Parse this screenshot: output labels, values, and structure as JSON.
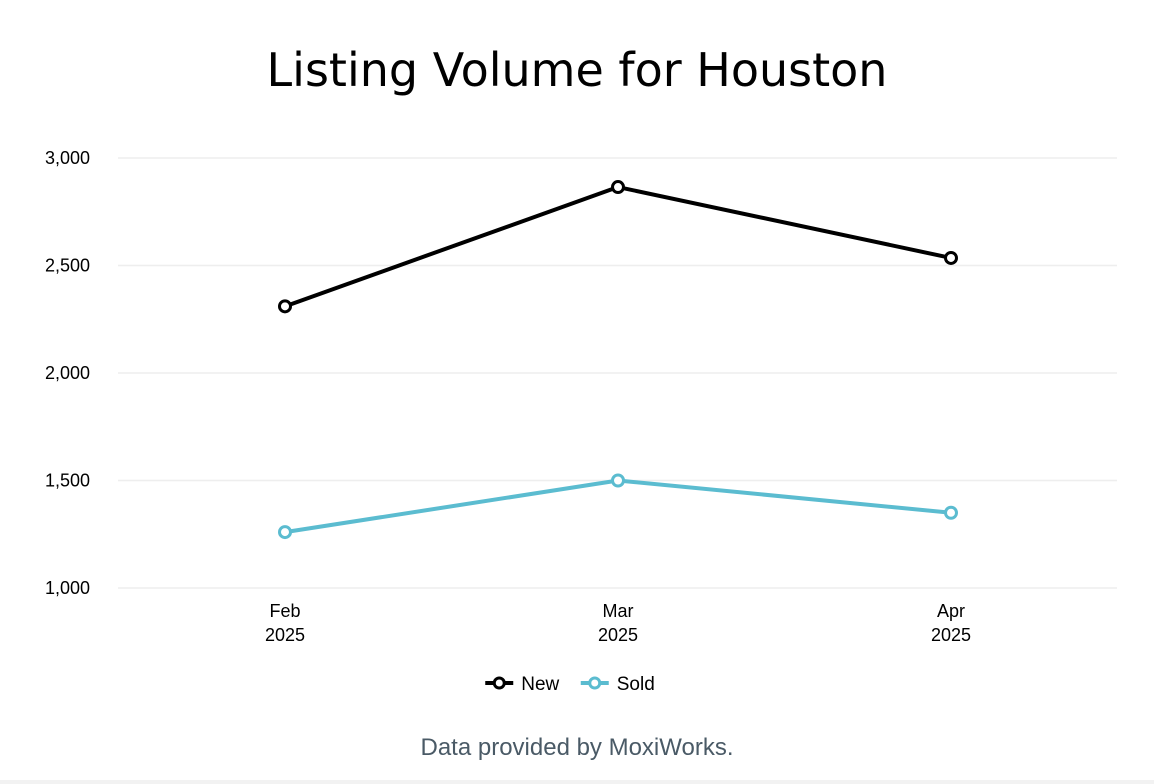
{
  "chart_data": {
    "type": "line",
    "title": "Listing Volume for Houston",
    "xlabel": "",
    "ylabel": "",
    "categories": [
      [
        "Feb",
        "2025"
      ],
      [
        "Mar",
        "2025"
      ],
      [
        "Apr",
        "2025"
      ]
    ],
    "series": [
      {
        "name": "New",
        "values": [
          2310,
          2865,
          2535
        ],
        "color": "#000000"
      },
      {
        "name": "Sold",
        "values": [
          1260,
          1500,
          1350
        ],
        "color": "#5bbcd0"
      }
    ],
    "ylim": [
      1000,
      3000
    ],
    "yticks": [
      1000,
      1500,
      2000,
      2500,
      3000
    ],
    "ytick_labels": [
      "1,000",
      "1,500",
      "2,000",
      "2,500",
      "3,000"
    ],
    "grid": true,
    "legend_placement": "bottom-center"
  },
  "footer": {
    "text": "Data provided by MoxiWorks."
  }
}
